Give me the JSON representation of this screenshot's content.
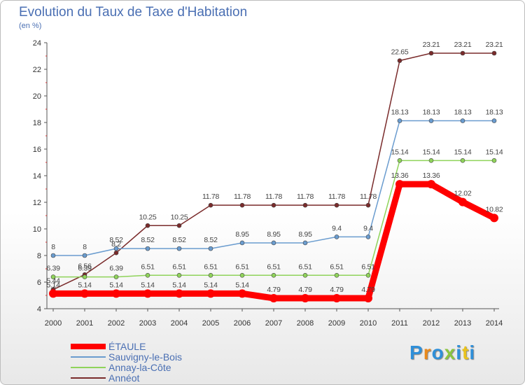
{
  "header": {
    "title": "Evolution du Taux de Taxe d'Habitation",
    "subtitle": "(en %)"
  },
  "brand": {
    "letters": [
      "P",
      "r",
      "o",
      "x",
      "i",
      "t",
      "i"
    ],
    "colors": [
      "#2f8fd8",
      "#e98a1d",
      "#2f8fd8",
      "#8bc53f",
      "#2f8fd8",
      "#e9c21d",
      "#2f8fd8"
    ]
  },
  "chart_data": {
    "type": "line",
    "title": "Evolution du Taux de Taxe d'Habitation",
    "ylabel": "(en %)",
    "xlabel": "",
    "x": [
      "2000",
      "2001",
      "2002",
      "2003",
      "2004",
      "2005",
      "2006",
      "2007",
      "2008",
      "2009",
      "2010",
      "2011",
      "2012",
      "2013",
      "2014"
    ],
    "ylim": [
      4,
      24
    ],
    "yticks": [
      "4",
      "6",
      "8",
      "10",
      "12",
      "14",
      "16",
      "18",
      "20",
      "22",
      "24"
    ],
    "grid": false,
    "legend_position": "bottom-left",
    "series": [
      {
        "name": "ÉTAULE",
        "color": "#ff0000",
        "values": [
          5.14,
          5.14,
          5.14,
          5.14,
          5.14,
          5.14,
          5.14,
          4.79,
          4.79,
          4.79,
          4.79,
          13.36,
          13.36,
          12.02,
          10.82
        ],
        "labels": [
          "5.14",
          "5.14",
          "5.14",
          "5.14",
          "5.14",
          "5.14",
          "5.14",
          "4.79",
          "4.79",
          "4.79",
          "4.79",
          "13.36",
          "13.36",
          "12.02",
          "10.82"
        ]
      },
      {
        "name": "Sauvigny-le-Bois",
        "color": "#6a9ccf",
        "values": [
          8,
          8,
          8.52,
          8.52,
          8.52,
          8.52,
          8.95,
          8.95,
          8.95,
          9.4,
          9.4,
          18.13,
          18.13,
          18.13,
          18.13
        ],
        "labels": [
          "8",
          "8",
          "8.52",
          "8.52",
          "8.52",
          "8.52",
          "8.95",
          "8.95",
          "8.95",
          "9.4",
          "9.4",
          "18.13",
          "18.13",
          "18.13",
          "18.13"
        ]
      },
      {
        "name": "Annay-la-Côte",
        "color": "#8fd35a",
        "values": [
          6.39,
          6.39,
          6.39,
          6.51,
          6.51,
          6.51,
          6.51,
          6.51,
          6.51,
          6.51,
          6.51,
          15.14,
          15.14,
          15.14,
          15.14
        ],
        "labels": [
          "6.39",
          "6.39",
          "6.39",
          "6.51",
          "6.51",
          "6.51",
          "6.51",
          "6.51",
          "6.51",
          "6.51",
          "6.51",
          "15.14",
          "15.14",
          "15.14",
          "15.14"
        ]
      },
      {
        "name": "Annéot",
        "color": "#7a2b2b",
        "values": [
          5.44,
          6.56,
          8.2,
          10.25,
          10.25,
          11.78,
          11.78,
          11.78,
          11.78,
          11.78,
          11.78,
          22.65,
          23.21,
          23.21,
          23.21
        ],
        "labels": [
          "5.44",
          "6.56",
          "8.2",
          "10.25",
          "10.25",
          "11.78",
          "11.78",
          "11.78",
          "11.78",
          "11.78",
          "11.78",
          "22.65",
          "23.21",
          "23.21",
          "23.21"
        ]
      }
    ]
  }
}
